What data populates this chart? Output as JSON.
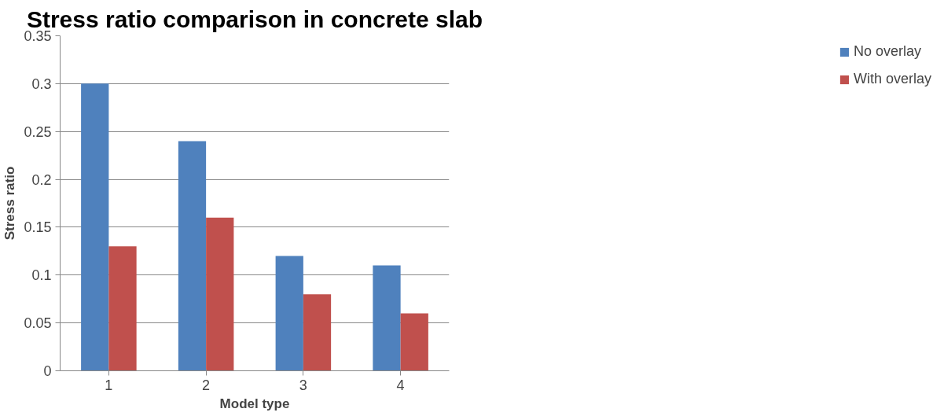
{
  "chart_data": {
    "type": "bar",
    "title": "Stress ratio comparison in concrete slab",
    "xlabel": "Model type",
    "ylabel": "Stress ratio",
    "categories": [
      "1",
      "2",
      "3",
      "4"
    ],
    "series": [
      {
        "name": "No overlay",
        "color": "#4f81bd",
        "values": [
          0.3,
          0.24,
          0.12,
          0.11
        ]
      },
      {
        "name": "With overlay",
        "color": "#c0504d",
        "values": [
          0.13,
          0.16,
          0.08,
          0.06
        ]
      }
    ],
    "ylim": [
      0,
      0.35
    ],
    "yticks": [
      0,
      0.05,
      0.1,
      0.15,
      0.2,
      0.25,
      0.3,
      0.35
    ],
    "grid": "y",
    "legend": "right"
  }
}
